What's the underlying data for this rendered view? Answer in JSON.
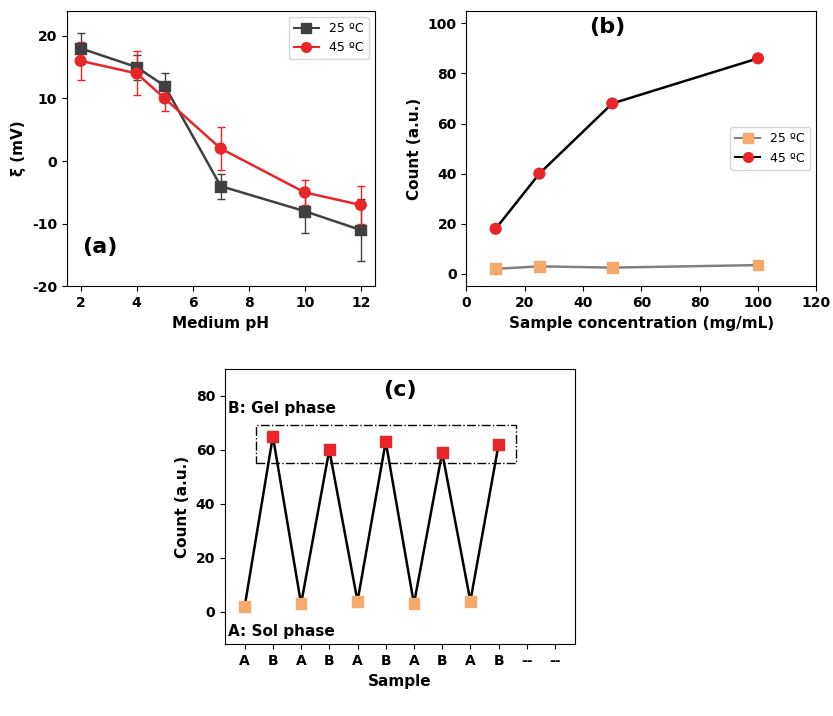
{
  "chart_data": [
    {
      "type": "line",
      "annotations": [
        "(a)"
      ],
      "x_label": "Medium pH",
      "y_label": "ξ (mV)",
      "x": [
        2,
        4,
        5,
        7,
        10,
        12
      ],
      "series": [
        {
          "name": "25 ºC",
          "color": "#404040",
          "marker": "square",
          "values": [
            18,
            15,
            12,
            -4,
            -8,
            -11
          ],
          "errors": [
            2.5,
            2,
            2,
            2,
            3.5,
            5
          ]
        },
        {
          "name": "45 ºC",
          "color": "#e8262a",
          "marker": "circle",
          "values": [
            16,
            14,
            10,
            2,
            -5,
            -7
          ],
          "errors": [
            3,
            3.5,
            2,
            3.5,
            2,
            3
          ]
        }
      ],
      "xlim": [
        1.5,
        12.5
      ],
      "xticks": [
        2,
        4,
        6,
        8,
        10,
        12
      ],
      "ylim": [
        -20,
        24
      ],
      "yticks": [
        -20,
        -10,
        0,
        10,
        20
      ],
      "legend": "upper right"
    },
    {
      "type": "line",
      "annotations": [
        "(b)"
      ],
      "x_label": "Sample concentration (mg/mL)",
      "y_label": "Count (a.u.)",
      "x": [
        10,
        25,
        50,
        100
      ],
      "series": [
        {
          "name": "25 ºC",
          "color": "#808080",
          "colors": [
            "#f5a96b",
            "#f5a96b",
            "#f5a96b",
            "#f5a96b"
          ],
          "marker": "square",
          "values": [
            2,
            3,
            2.5,
            3.5
          ]
        },
        {
          "name": "45 ºC",
          "color": "#000000",
          "colors": [
            "#e8262a",
            "#e8262a",
            "#e8262a",
            "#e8262a"
          ],
          "marker": "circle",
          "values": [
            18,
            40,
            68,
            86
          ]
        }
      ],
      "xlim": [
        0,
        120
      ],
      "xticks": [
        0,
        20,
        40,
        60,
        80,
        100,
        120
      ],
      "ylim": [
        -5,
        105
      ],
      "yticks": [
        0,
        20,
        40,
        60,
        80,
        100
      ],
      "legend": "center right"
    },
    {
      "type": "line",
      "annotations": [
        "(c)",
        "B: Gel phase",
        "A: Sol phase"
      ],
      "x_label": "Sample",
      "y_label": "Count (a.u.)",
      "categories": [
        "A",
        "B",
        "A",
        "B",
        "A",
        "B",
        "A",
        "B",
        "A",
        "B",
        "--",
        "--"
      ],
      "series": [
        {
          "color": "#000000",
          "marker": "square",
          "colors": [
            "#f5a96b",
            "#e8262a",
            "#f5a96b",
            "#e8262a",
            "#f5a96b",
            "#e8262a",
            "#f5a96b",
            "#e8262a",
            "#f5a96b",
            "#e8262a",
            "#f5a96b",
            "#e8262a"
          ],
          "values": [
            2,
            65,
            3,
            60,
            4,
            63,
            3,
            59,
            4,
            62,
            null,
            null
          ]
        }
      ],
      "ylim": [
        -12,
        90
      ],
      "yticks": [
        0,
        20,
        40,
        60,
        80
      ]
    }
  ]
}
